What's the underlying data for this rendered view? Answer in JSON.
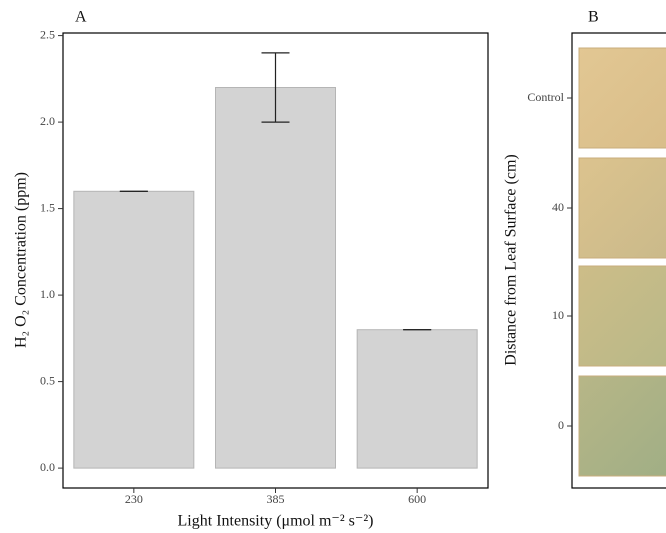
{
  "chart_data": [
    {
      "type": "bar",
      "panel": "A",
      "xlabel": "Light Intensity (μmol m⁻² s⁻²)",
      "ylabel": "H₂ O₂ Concentration (ppm)",
      "categories": [
        "230",
        "385",
        "600"
      ],
      "values": [
        1.6,
        2.2,
        0.8
      ],
      "errors": [
        0,
        0.2,
        0
      ],
      "color": "#d3d3d3",
      "ylim": [
        -0.115,
        2.515
      ],
      "yticks": [
        {
          "value": 0,
          "label": "0.0"
        },
        0.5,
        {
          "value": 1,
          "label": "1.0"
        },
        1.5,
        {
          "value": 2,
          "label": "2.0"
        },
        2.5
      ]
    },
    {
      "type": "image",
      "panel": "B",
      "ylabel": "Distance from Leaf Surface (cm)",
      "categories": [
        "Control",
        "40",
        "10",
        "0"
      ]
    }
  ]
}
